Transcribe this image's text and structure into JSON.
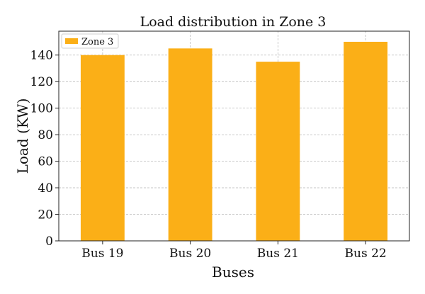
{
  "chart_data": {
    "type": "bar",
    "title": "Load distribution in Zone 3",
    "xlabel": "Buses",
    "ylabel": "Load (KW)",
    "categories": [
      "Bus 19",
      "Bus 20",
      "Bus 21",
      "Bus 22"
    ],
    "series": [
      {
        "name": "Zone 3",
        "values": [
          140,
          145,
          135,
          150
        ],
        "color": "#FBAF17"
      }
    ],
    "ylim": [
      0,
      158
    ],
    "yticks": [
      0,
      20,
      40,
      60,
      80,
      100,
      120,
      140
    ],
    "grid": true,
    "legend_position": "top-left"
  }
}
